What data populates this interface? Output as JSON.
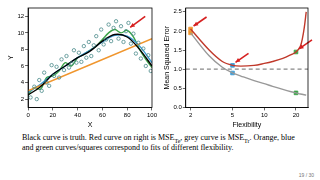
{
  "chart_data": [
    {
      "type": "scatter",
      "x_label": "X",
      "y_label": "Y",
      "xlim": [
        0,
        100
      ],
      "xticks": [
        0,
        20,
        40,
        60,
        80,
        100
      ],
      "ylim": [
        1,
        13
      ],
      "yticks": [
        2,
        4,
        6,
        8,
        10,
        12
      ],
      "grid": false,
      "series": [
        {
          "type": "scatter",
          "marker": "circle_open",
          "color": "#4a8a8a",
          "x": [
            2,
            5,
            7,
            9,
            11,
            13,
            15,
            17,
            19,
            21,
            23,
            25,
            27,
            29,
            31,
            33,
            35,
            37,
            39,
            41,
            43,
            45,
            47,
            49,
            51,
            53,
            55,
            57,
            59,
            61,
            63,
            65,
            67,
            69,
            71,
            73,
            75,
            77,
            79,
            81,
            83,
            85,
            87,
            89,
            91,
            93,
            95,
            97,
            99
          ],
          "values": [
            2.2,
            3.5,
            2.0,
            4.3,
            3.0,
            5.2,
            4.0,
            3.6,
            6.1,
            4.8,
            5.9,
            4.6,
            6.8,
            5.5,
            7.2,
            5.8,
            6.3,
            7.9,
            6.4,
            7.6,
            6.5,
            8.4,
            7.0,
            8.9,
            7.2,
            8.5,
            9.6,
            7.9,
            10.4,
            8.6,
            9.2,
            11.0,
            9.0,
            10.6,
            11.4,
            9.3,
            10.8,
            8.9,
            10.2,
            11.2,
            8.7,
            9.9,
            7.5,
            8.8,
            6.9,
            8.1,
            6.0,
            7.3,
            5.4
          ]
        },
        {
          "type": "line",
          "line_style": "solid",
          "color": "#000000",
          "x": [
            0,
            10,
            20,
            30,
            40,
            50,
            60,
            70,
            80,
            90,
            100
          ],
          "values": [
            2.5,
            3.5,
            5.0,
            6.0,
            7.0,
            7.8,
            9.0,
            9.8,
            9.5,
            8.0,
            6.0
          ]
        },
        {
          "type": "line",
          "line_style": "solid",
          "color": "#f0962e",
          "x": [
            0,
            100
          ],
          "values": [
            3.0,
            9.3
          ]
        },
        {
          "type": "line",
          "line_style": "solid",
          "color": "#3a9bd5",
          "x": [
            0,
            10,
            20,
            30,
            40,
            50,
            60,
            70,
            80,
            90,
            100
          ],
          "values": [
            2.8,
            3.8,
            5.0,
            6.0,
            7.0,
            7.9,
            8.9,
            9.7,
            9.6,
            8.4,
            6.4
          ]
        },
        {
          "type": "line",
          "line_style": "solid",
          "color": "#3aa346",
          "x": [
            0,
            5,
            10,
            15,
            20,
            25,
            30,
            35,
            40,
            45,
            50,
            55,
            60,
            65,
            70,
            75,
            80,
            85,
            90,
            95,
            100
          ],
          "values": [
            2.5,
            3.4,
            3.2,
            4.6,
            4.8,
            5.4,
            6.4,
            6.0,
            7.0,
            7.4,
            7.9,
            8.4,
            9.2,
            10.0,
            10.4,
            10.0,
            10.3,
            9.5,
            8.0,
            6.8,
            5.8
          ]
        }
      ]
    },
    {
      "type": "line",
      "x_label": "Flexibility",
      "y_label": "Mean Squared Error",
      "log": "x",
      "xlim": [
        1.8,
        26
      ],
      "xticks": [
        2,
        5,
        10,
        20
      ],
      "ylim": [
        0,
        2.6
      ],
      "yticks": [
        {
          "value": 0,
          "label": "0.0"
        },
        0.5,
        {
          "value": 1,
          "label": "1.0"
        },
        1.5,
        {
          "value": 2,
          "label": "2.0"
        },
        2.5
      ],
      "grid": false,
      "series": [
        {
          "type": "line",
          "line_style": "dashed",
          "color": "#888888",
          "x": [
            1.8,
            26
          ],
          "values": [
            1,
            1
          ]
        },
        {
          "type": "line",
          "line_style": "solid",
          "color": "#c0392b",
          "x": [
            2,
            3,
            4,
            5,
            6,
            8,
            10,
            12,
            15,
            18,
            20,
            22,
            23,
            24,
            25
          ],
          "values": [
            2.05,
            1.5,
            1.2,
            1.1,
            1.08,
            1.1,
            1.15,
            1.2,
            1.28,
            1.38,
            1.45,
            1.6,
            1.8,
            2.1,
            2.5
          ]
        },
        {
          "type": "line",
          "line_style": "solid",
          "color": "#999999",
          "x": [
            2,
            3,
            4,
            5,
            6,
            8,
            10,
            12,
            15,
            18,
            20,
            22,
            25
          ],
          "values": [
            1.95,
            1.35,
            1.05,
            0.9,
            0.82,
            0.7,
            0.62,
            0.55,
            0.47,
            0.41,
            0.38,
            0.35,
            0.32
          ]
        },
        {
          "type": "scatter",
          "marker": "square",
          "color": "#f0962e",
          "x": [
            2,
            2
          ],
          "values": [
            2.05,
            1.95
          ]
        },
        {
          "type": "scatter",
          "marker": "square",
          "color": "#3a9bd5",
          "x": [
            5,
            5
          ],
          "values": [
            1.1,
            0.9
          ]
        },
        {
          "type": "scatter",
          "marker": "square",
          "color": "#3aa346",
          "x": [
            20,
            20
          ],
          "values": [
            1.45,
            0.38
          ]
        }
      ]
    }
  ],
  "caption": [
    {
      "text": "Black curve is truth. Red curve on right is MSE"
    },
    {
      "text": "Te",
      "subscript": true
    },
    {
      "text": ", grey curve is MSE"
    },
    {
      "text": "Tr",
      "subscript": true
    },
    {
      "text": ". Orange, blue and green curves/squares correspond to fits of different flexibility."
    }
  ],
  "page": "19 / 30"
}
